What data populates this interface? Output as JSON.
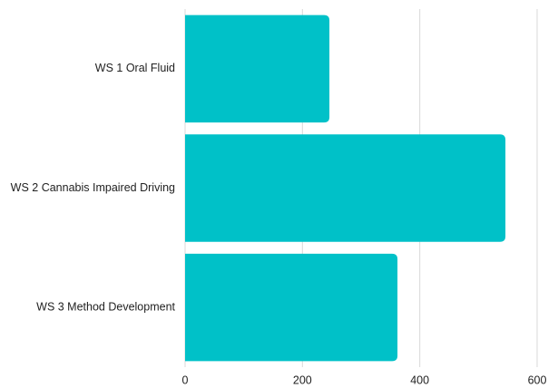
{
  "chart_data": {
    "type": "bar",
    "orientation": "horizontal",
    "categories": [
      "WS 1 Oral Fluid",
      "WS 2 Cannabis Impaired Driving",
      "WS 3 Method Development"
    ],
    "values": [
      246,
      546,
      362
    ],
    "color": "#00c1c8",
    "xlim": [
      0,
      600
    ],
    "xticks": [
      0,
      200,
      400,
      600
    ],
    "grid": true
  }
}
